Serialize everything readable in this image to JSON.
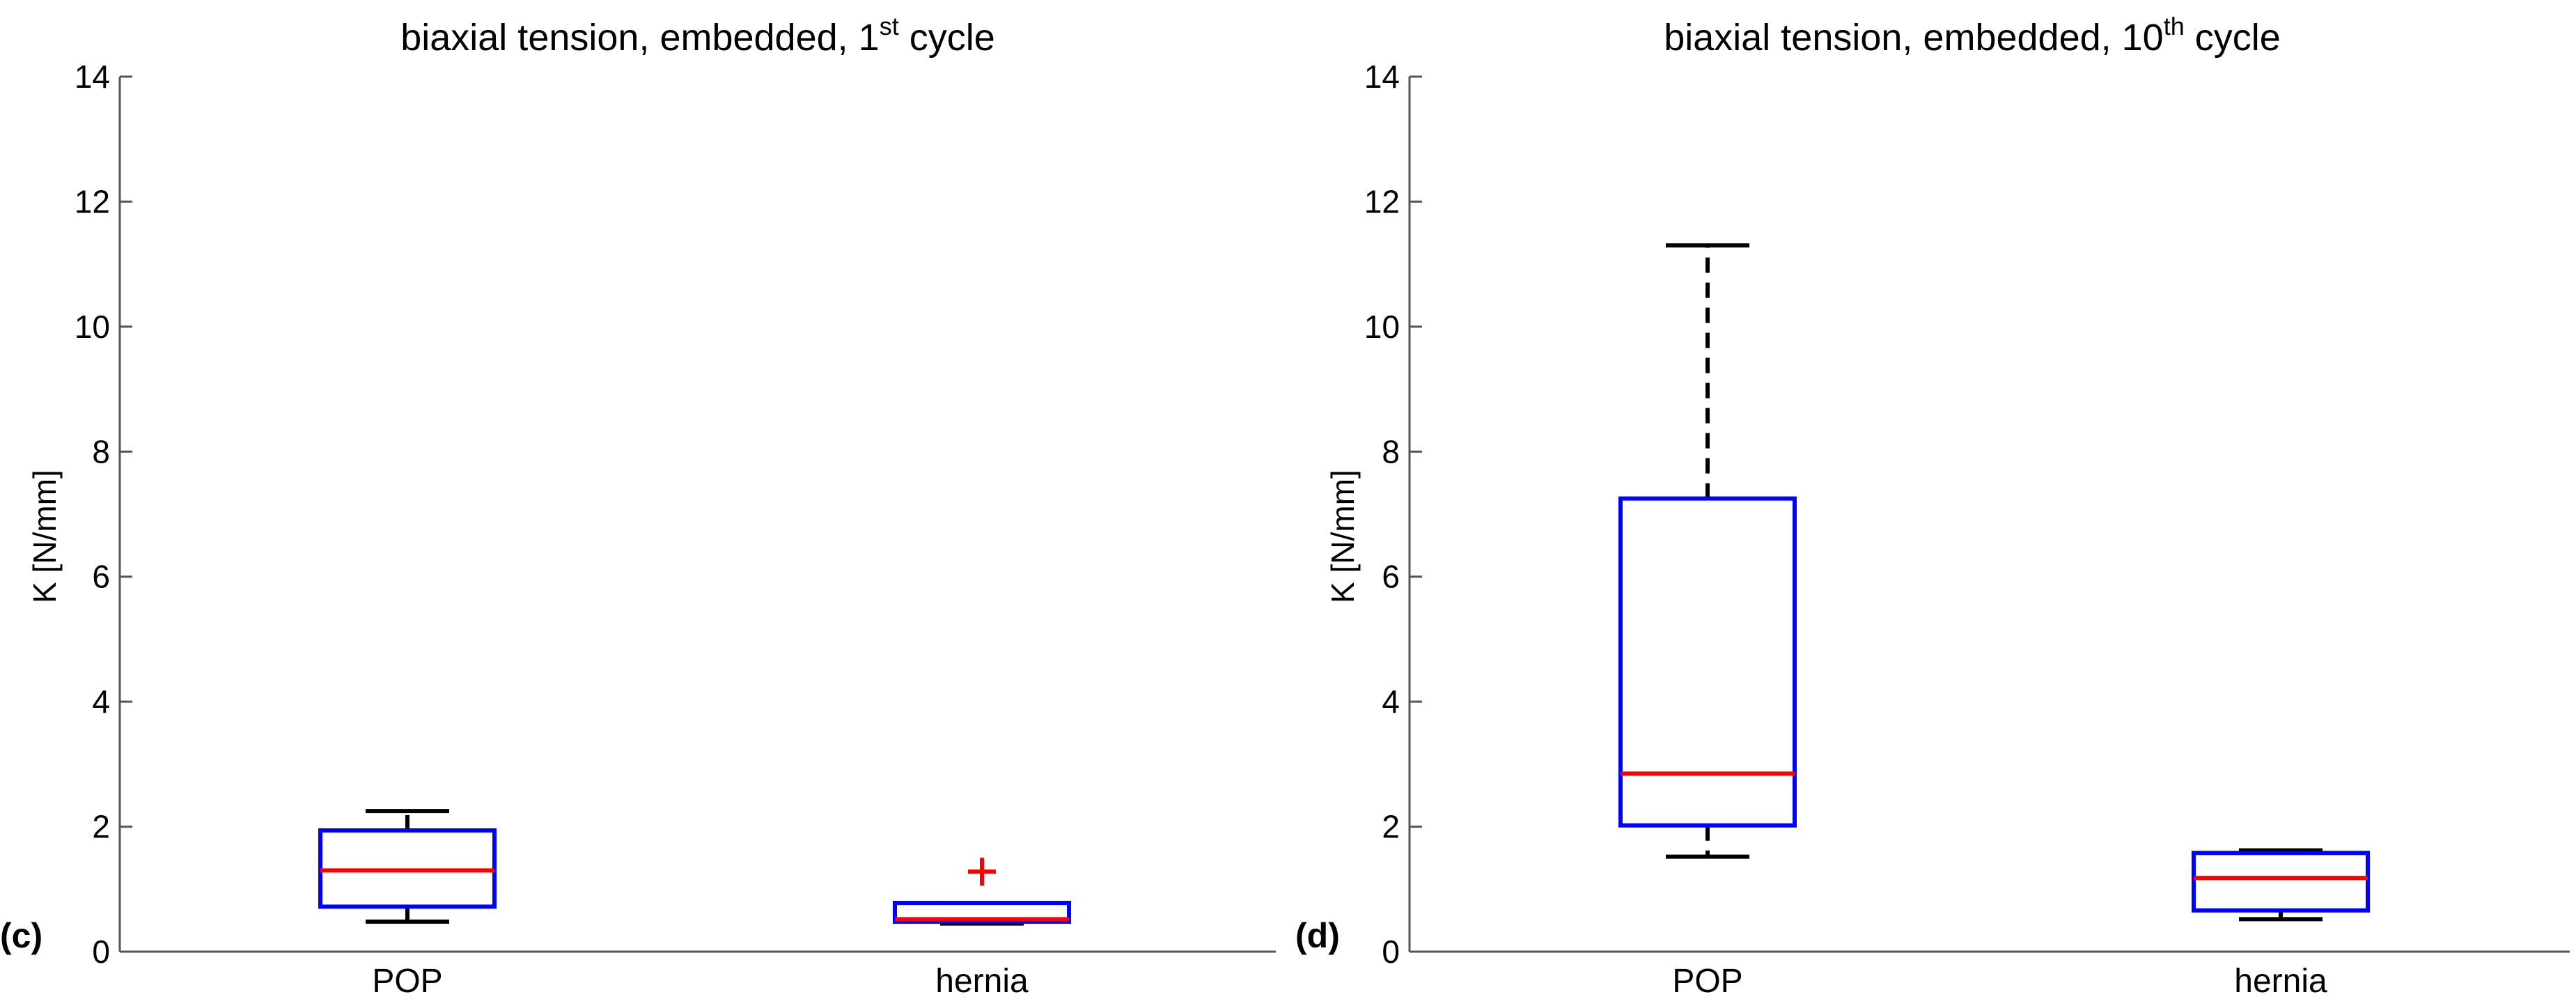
{
  "chart_data": [
    {
      "type": "box",
      "panel_label": "(c)",
      "title": {
        "main": "biaxial tension, embedded, 1",
        "sup": "st",
        "end": " cycle"
      },
      "ylabel": "K [N/mm]",
      "ylim": [
        0,
        14
      ],
      "yticks": [
        "0",
        "2",
        "4",
        "6",
        "8",
        "10",
        "12",
        "14"
      ],
      "categories": [
        "POP",
        "hernia"
      ],
      "boxes": [
        {
          "category": "POP",
          "whisker_low": 0.48,
          "q1": 0.72,
          "median": 1.3,
          "q3": 1.94,
          "whisker_high": 2.25,
          "outliers": []
        },
        {
          "category": "hernia",
          "whisker_low": 0.45,
          "q1": 0.48,
          "median": 0.52,
          "q3": 0.78,
          "whisker_high": 0.78,
          "outliers": [
            1.28
          ]
        }
      ],
      "colors": {
        "box": "#0000ff",
        "median": "#ff0000",
        "whisker": "#000000",
        "outlier": "#ff0000"
      }
    },
    {
      "type": "box",
      "panel_label": "(d)",
      "title": {
        "main": "biaxial tension, embedded, 10",
        "sup": "th",
        "end": " cycle"
      },
      "ylabel": "K [N/mm]",
      "ylim": [
        0,
        14
      ],
      "yticks": [
        "0",
        "2",
        "4",
        "6",
        "8",
        "10",
        "12",
        "14"
      ],
      "categories": [
        "POP",
        "hernia"
      ],
      "boxes": [
        {
          "category": "POP",
          "whisker_low": 1.52,
          "q1": 2.02,
          "median": 2.85,
          "q3": 7.25,
          "whisker_high": 11.3,
          "outliers": []
        },
        {
          "category": "hernia",
          "whisker_low": 0.52,
          "q1": 0.66,
          "median": 1.18,
          "q3": 1.58,
          "whisker_high": 1.62,
          "outliers": []
        }
      ],
      "colors": {
        "box": "#0000ff",
        "median": "#ff0000",
        "whisker": "#000000",
        "outlier": "#ff0000"
      }
    }
  ]
}
